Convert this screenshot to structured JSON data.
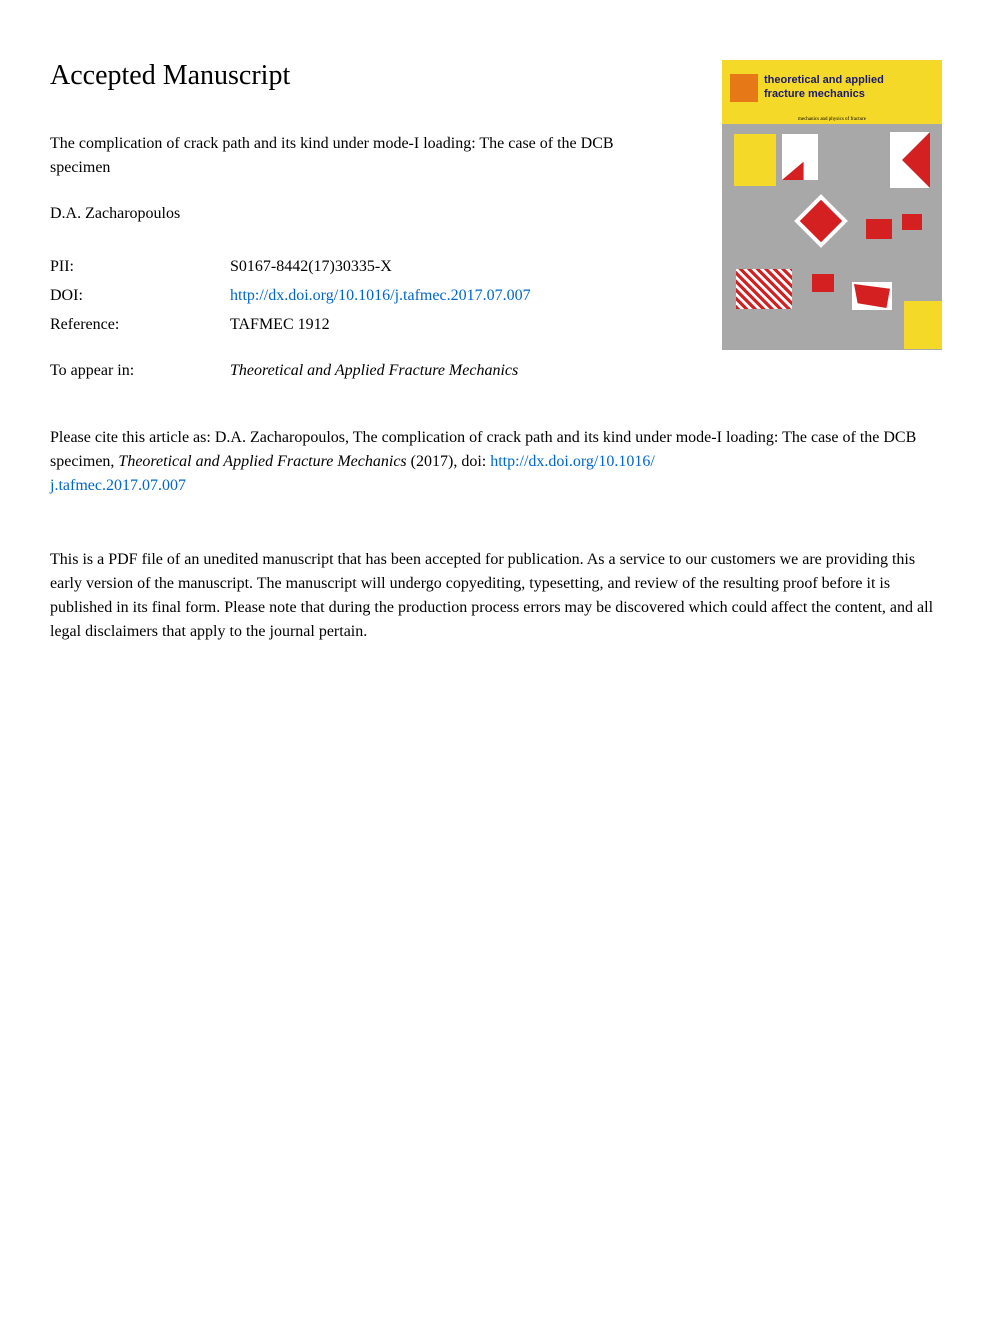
{
  "heading": "Accepted Manuscript",
  "article_title": "The complication of crack path and its kind under mode-I loading: The case of the DCB specimen",
  "authors": "D.A. Zacharopoulos",
  "metadata": {
    "pii_label": "PII:",
    "pii_value": "S0167-8442(17)30335-X",
    "doi_label": "DOI:",
    "doi_value": "http://dx.doi.org/10.1016/j.tafmec.2017.07.007",
    "reference_label": "Reference:",
    "reference_value": "TAFMEC 1912",
    "appear_label": "To appear in:",
    "appear_value": "Theoretical and Applied Fracture Mechanics"
  },
  "journal_cover": {
    "name_line1": "theoretical and applied",
    "name_line2": "fracture mechanics",
    "subtitle": "mechanics and physics of fracture"
  },
  "citation": {
    "prefix": "Please cite this article as: D.A. Zacharopoulos, The complication of crack path and its kind under mode-I loading: The case of the DCB specimen, ",
    "journal_italic": "Theoretical and Applied Fracture Mechanics",
    "year": " (2017), doi: ",
    "doi_link_1": "http://dx.doi.org/10.1016/",
    "doi_link_2": "j.tafmec.2017.07.007"
  },
  "disclaimer": "This is a PDF file of an unedited manuscript that has been accepted for publication. As a service to our customers we are providing this early version of the manuscript. The manuscript will undergo copyediting, typesetting, and review of the resulting proof before it is published in its final form. Please note that during the production process errors may be discovered which could affect the content, and all legal disclaimers that apply to the journal pertain.",
  "colors": {
    "link": "#0066cc",
    "cover_yellow": "#f5d928",
    "cover_gray": "#a8a8a8",
    "cover_red": "#d42020",
    "cover_title": "#1a1a6e",
    "elsevier_orange": "#e67817"
  }
}
